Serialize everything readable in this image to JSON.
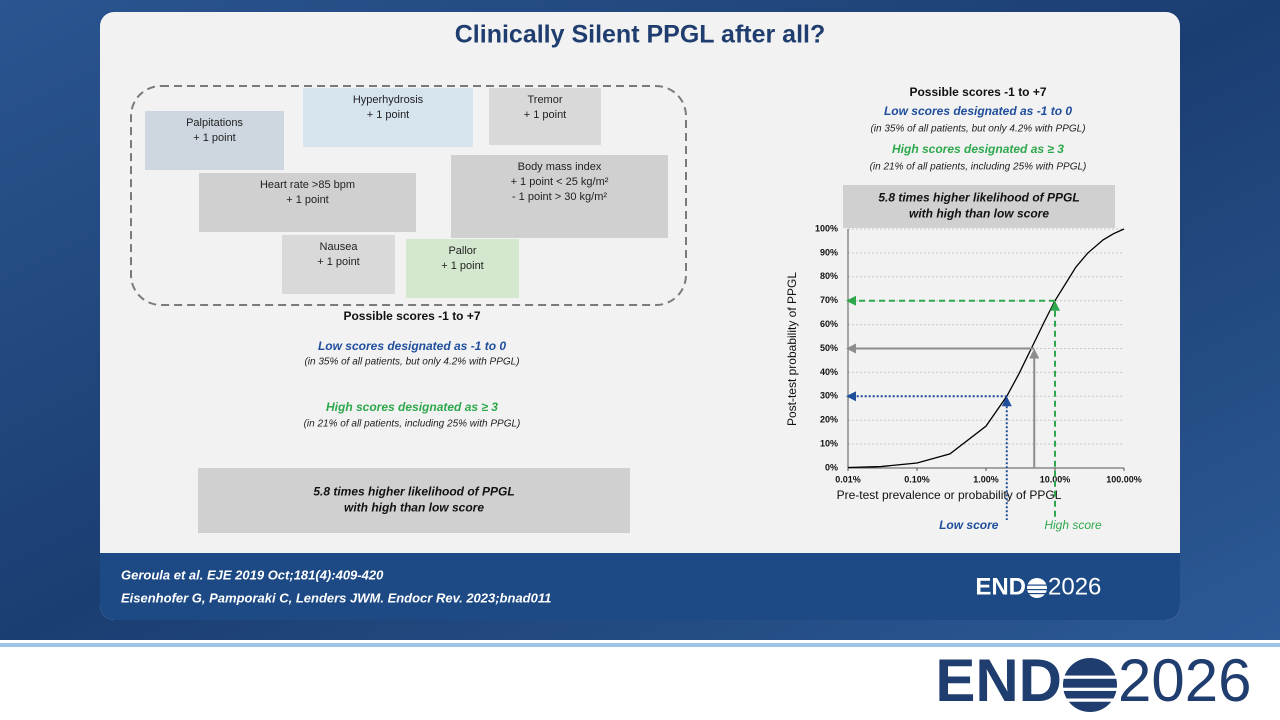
{
  "title": "Clinically Silent PPGL after all?",
  "score_boxes": [
    {
      "lines": [
        "Palpitations",
        "+ 1 point"
      ],
      "color": "#ced6df"
    },
    {
      "lines": [
        "Hyperhydrosis",
        "+ 1 point"
      ],
      "color": "#d6e4ed"
    },
    {
      "lines": [
        "Tremor",
        "+ 1 point"
      ],
      "color": "#d9d9d9"
    },
    {
      "lines": [
        "Heart rate >85 bpm",
        "+ 1 point"
      ],
      "color": "#d0d0d0"
    },
    {
      "lines": [
        "Body mass index",
        "+ 1 point < 25 kg/m²",
        "- 1 point > 30 kg/m²"
      ],
      "color": "#d0d0d0"
    },
    {
      "lines": [
        "Nausea",
        "+ 1 point"
      ],
      "color": "#d9d9d9"
    },
    {
      "lines": [
        "Pallor",
        "+ 1 point"
      ],
      "color": "#d4e8cf"
    }
  ],
  "left_summary": {
    "range": "Possible scores -1 to +7",
    "low": "Low scores designated  as -1 to 0",
    "low_note": "(in 35% of all patients, but only 4.2% with PPGL)",
    "high": "High scores designated as ≥ 3",
    "high_note": "(in 21% of all patients, including 25% with PPGL)",
    "conclusion": [
      "5.8 times higher likelihood of PPGL",
      "with high than low score"
    ]
  },
  "right_summary": {
    "range": "Possible scores -1 to +7",
    "low": "Low scores designated  as -1 to 0",
    "low_note": "(in 35% of all patients, but only 4.2% with PPGL)",
    "high": "High scores designated as ≥ 3",
    "high_note": "(in 21% of all patients, including 25% with PPGL)",
    "conclusion": [
      "5.8 times higher likelihood of PPGL",
      "with high than low score"
    ]
  },
  "chart_data": {
    "type": "line",
    "x_label": "Pre-test prevalence or probability of PPGL",
    "y_label": "Post-test probability of PPGL",
    "log_x": true,
    "grid": true,
    "x": [
      0.01,
      0.03,
      0.1,
      0.3,
      1,
      2,
      3,
      5,
      7,
      10,
      20,
      30,
      50,
      70,
      100
    ],
    "series": [
      {
        "color": "#000000",
        "values": [
          0.2,
          0.6,
          2.1,
          5.9,
          17.5,
          30.0,
          39.4,
          52.5,
          61.2,
          70.0,
          84.0,
          90.0,
          95.5,
          98.0,
          100
        ]
      }
    ],
    "xlim": [
      0.01,
      100
    ],
    "ylim": [
      0,
      100
    ],
    "xticks": [
      {
        "value": 0.01,
        "label": "0.01%"
      },
      {
        "value": 0.1,
        "label": "0.10%"
      },
      {
        "value": 1,
        "label": "1.00%"
      },
      {
        "value": 10,
        "label": "10.00%"
      },
      {
        "value": 100,
        "label": "100.00%"
      }
    ],
    "yticks": [
      {
        "value": 0,
        "label": "0%"
      },
      {
        "value": 10,
        "label": "10%"
      },
      {
        "value": 20,
        "label": "20%"
      },
      {
        "value": 30,
        "label": "30%"
      },
      {
        "value": 40,
        "label": "40%"
      },
      {
        "value": 50,
        "label": "50%"
      },
      {
        "value": 60,
        "label": "60%"
      },
      {
        "value": 70,
        "label": "70%"
      },
      {
        "value": 80,
        "label": "80%"
      },
      {
        "value": 90,
        "label": "90%"
      },
      {
        "value": 100,
        "label": "100%"
      }
    ],
    "markers": [
      {
        "x": 2,
        "y": 30,
        "color": "#1f4e9c",
        "label": "Low score"
      },
      {
        "x": 5,
        "y": 50,
        "color": "#8c8c8c"
      },
      {
        "x": 10,
        "y": 70,
        "color": "#2ea84c",
        "label": "High score"
      }
    ]
  },
  "citations": [
    "Geroula et al. EJE 2019 Oct;181(4):409-420",
    "Eisenhofer G, Pamporaki C, Lenders JWM.  Endocr Rev. 2023;bnad011"
  ],
  "logo": {
    "left": "END",
    "right": "2026"
  }
}
